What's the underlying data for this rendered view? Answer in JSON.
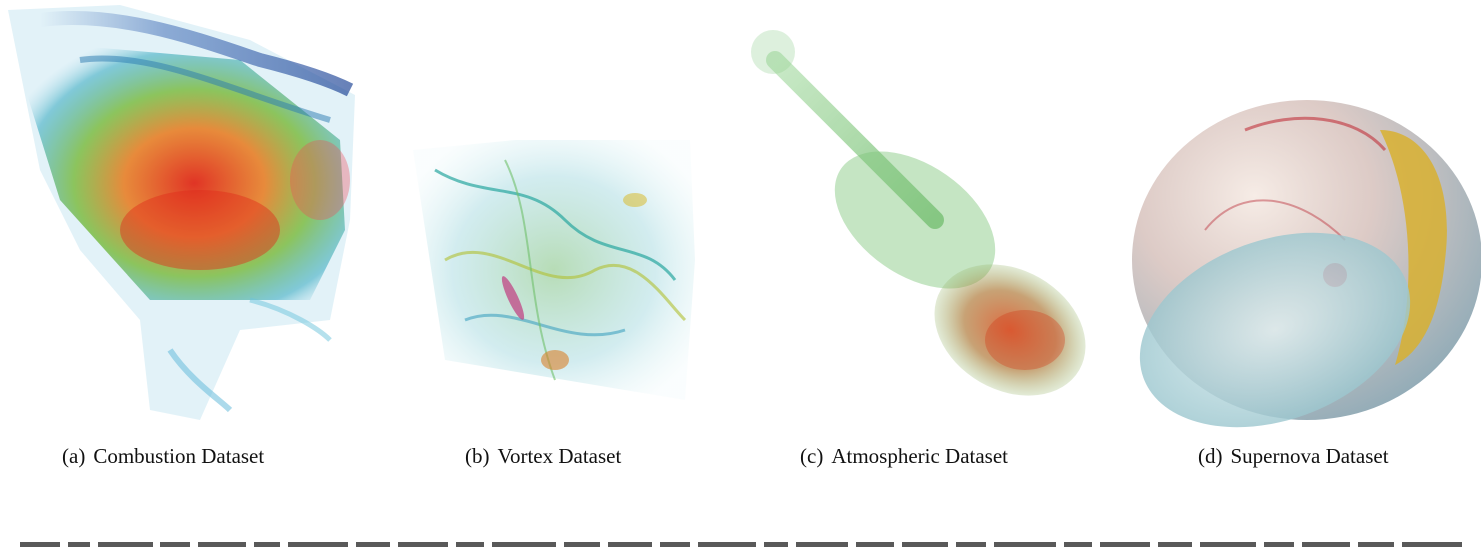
{
  "figure": {
    "panels": [
      {
        "tag": "(a)",
        "caption": "Combustion Dataset"
      },
      {
        "tag": "(b)",
        "caption": "Vortex Dataset"
      },
      {
        "tag": "(c)",
        "caption": "Atmospheric Dataset"
      },
      {
        "tag": "(d)",
        "caption": "Supernova Dataset"
      }
    ]
  }
}
